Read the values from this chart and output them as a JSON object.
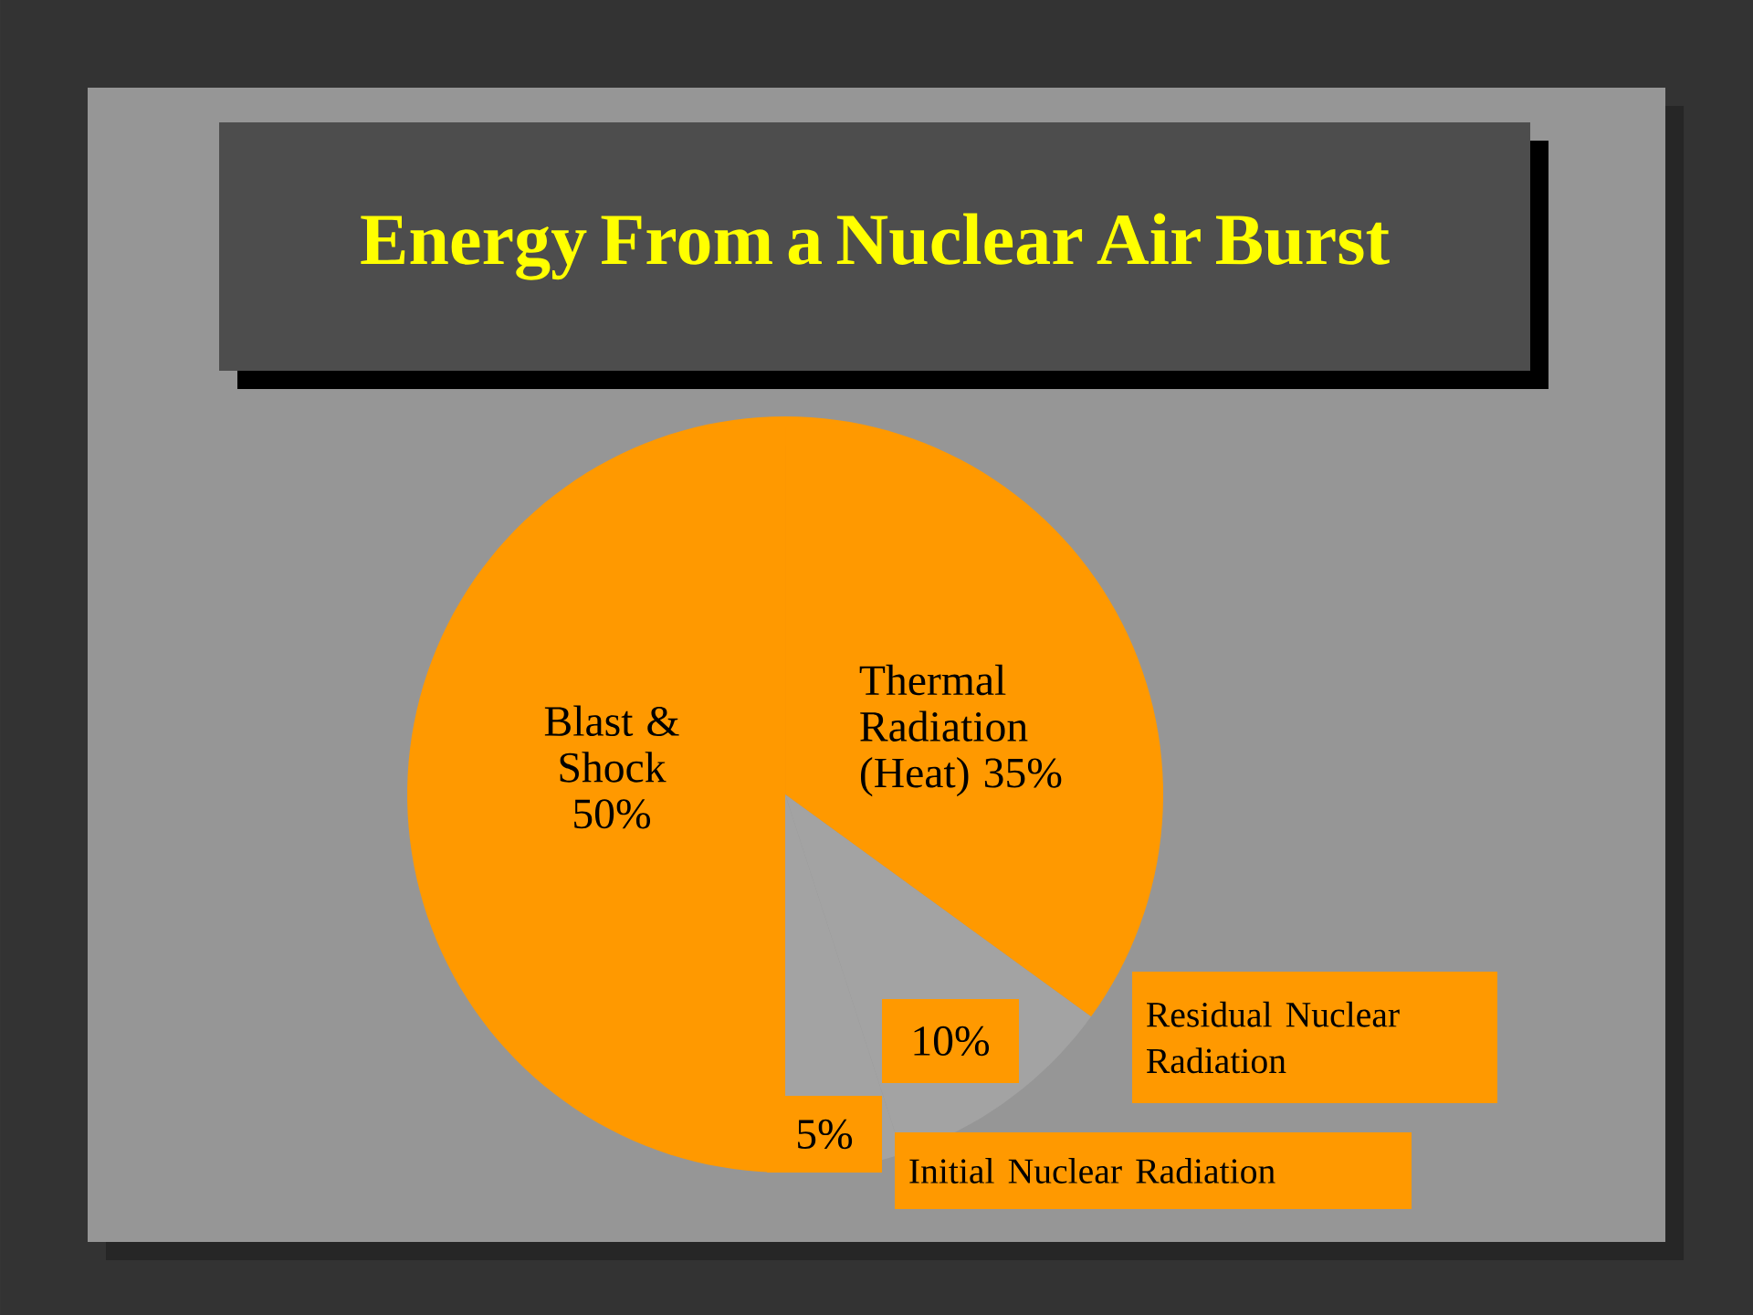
{
  "chart_data": {
    "type": "pie",
    "title": "Energy From a Nuclear Air Burst",
    "categories": [
      "Thermal Radiation (Heat)",
      "Residual Nuclear Radiation",
      "Initial Nuclear Radiation",
      "Blast & Shock"
    ],
    "values": [
      35,
      10,
      5,
      50
    ],
    "value_labels": [
      "35%",
      "10%",
      "5%",
      "50%"
    ],
    "colors": [
      "#ff9900",
      "#a3a3a3",
      "#a3a3a3",
      "#ff9900"
    ]
  }
}
